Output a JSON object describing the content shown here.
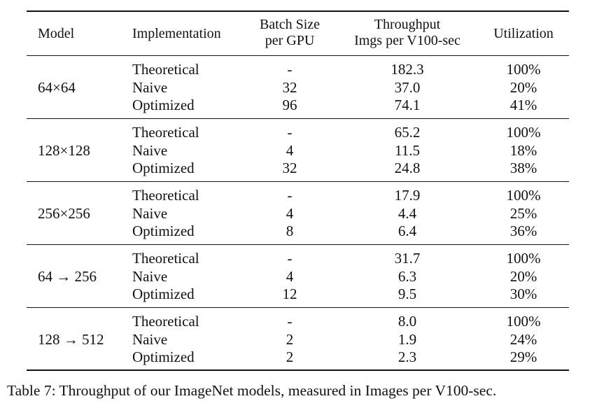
{
  "table": {
    "headers": {
      "model": "Model",
      "implementation": "Implementation",
      "batch_line1": "Batch Size",
      "batch_line2": "per GPU",
      "throughput_line1": "Throughput",
      "throughput_line2": "Imgs per V100-sec",
      "utilization": "Utilization"
    },
    "groups": [
      {
        "model": "64×64",
        "rows": [
          {
            "implementation": "Theoretical",
            "batch": "-",
            "throughput": "182.3",
            "utilization": "100%"
          },
          {
            "implementation": "Naive",
            "batch": "32",
            "throughput": "37.0",
            "utilization": "20%"
          },
          {
            "implementation": "Optimized",
            "batch": "96",
            "throughput": "74.1",
            "utilization": "41%"
          }
        ]
      },
      {
        "model": "128×128",
        "rows": [
          {
            "implementation": "Theoretical",
            "batch": "-",
            "throughput": "65.2",
            "utilization": "100%"
          },
          {
            "implementation": "Naive",
            "batch": "4",
            "throughput": "11.5",
            "utilization": "18%"
          },
          {
            "implementation": "Optimized",
            "batch": "32",
            "throughput": "24.8",
            "utilization": "38%"
          }
        ]
      },
      {
        "model": "256×256",
        "rows": [
          {
            "implementation": "Theoretical",
            "batch": "-",
            "throughput": "17.9",
            "utilization": "100%"
          },
          {
            "implementation": "Naive",
            "batch": "4",
            "throughput": "4.4",
            "utilization": "25%"
          },
          {
            "implementation": "Optimized",
            "batch": "8",
            "throughput": "6.4",
            "utilization": "36%"
          }
        ]
      },
      {
        "model": "64 → 256",
        "rows": [
          {
            "implementation": "Theoretical",
            "batch": "-",
            "throughput": "31.7",
            "utilization": "100%"
          },
          {
            "implementation": "Naive",
            "batch": "4",
            "throughput": "6.3",
            "utilization": "20%"
          },
          {
            "implementation": "Optimized",
            "batch": "12",
            "throughput": "9.5",
            "utilization": "30%"
          }
        ]
      },
      {
        "model": "128 → 512",
        "rows": [
          {
            "implementation": "Theoretical",
            "batch": "-",
            "throughput": "8.0",
            "utilization": "100%"
          },
          {
            "implementation": "Naive",
            "batch": "2",
            "throughput": "1.9",
            "utilization": "24%"
          },
          {
            "implementation": "Optimized",
            "batch": "2",
            "throughput": "2.3",
            "utilization": "29%"
          }
        ]
      }
    ]
  },
  "caption": "Table 7: Throughput of our ImageNet models, measured in Images per V100-sec."
}
